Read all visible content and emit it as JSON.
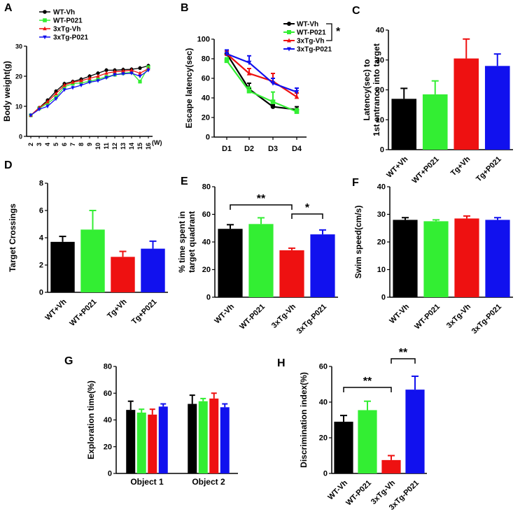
{
  "panels": {
    "A": "A",
    "B": "B",
    "C": "C",
    "D": "D",
    "E": "E",
    "F": "F",
    "G": "G",
    "H": "H"
  },
  "colors": {
    "WT-Vh": "#000000",
    "WT-P021": "#33ee33",
    "3xTg-Vh": "#ee1111",
    "3xTg-P021": "#1111ee"
  },
  "chart_data": [
    {
      "id": "A",
      "type": "line",
      "title": "",
      "xlabel": "",
      "ylabel": "Body weight(g)",
      "x_ticks": [
        "2",
        "3",
        "4",
        "5",
        "6",
        "7",
        "8",
        "9",
        "10",
        "11",
        "12",
        "13",
        "14",
        "15",
        "16"
      ],
      "x_unit": "(W)",
      "ylim": [
        0,
        30
      ],
      "y_ticks": [
        "0",
        "10",
        "20",
        "30"
      ],
      "series": [
        {
          "name": "WT-Vh",
          "values": [
            7,
            9.5,
            12,
            15,
            17.5,
            18.2,
            19,
            20,
            21,
            22,
            22,
            22.2,
            22.3,
            22.7,
            23.5
          ]
        },
        {
          "name": "WT-P021",
          "values": [
            7,
            9.3,
            11,
            13,
            16.5,
            17.5,
            17.8,
            18.3,
            19,
            19.8,
            20.5,
            21,
            21.3,
            18.2,
            23
          ]
        },
        {
          "name": "3xTg-Vh",
          "values": [
            7,
            9.5,
            11.5,
            14.2,
            17,
            18,
            18.5,
            19.3,
            20,
            21,
            21.5,
            21.7,
            22,
            21,
            22.5
          ]
        },
        {
          "name": "3xTg-P021",
          "values": [
            7,
            9,
            10,
            12.5,
            15.5,
            16.2,
            17,
            18,
            18.5,
            19.5,
            20.5,
            20.8,
            21,
            20,
            22
          ]
        }
      ]
    },
    {
      "id": "B",
      "type": "line",
      "title": "",
      "xlabel": "",
      "ylabel": "Escape latency(sec)",
      "categories": [
        "D1",
        "D2",
        "D3",
        "D4"
      ],
      "ylim": [
        0,
        100
      ],
      "y_ticks": [
        "0",
        "20",
        "40",
        "60",
        "80",
        "100"
      ],
      "legend": "top-right",
      "significance": "*",
      "series": [
        {
          "name": "WT-Vh",
          "values": [
            85,
            49,
            31,
            28
          ]
        },
        {
          "name": "WT-P021",
          "values": [
            78,
            47,
            36,
            26
          ]
        },
        {
          "name": "3xTg-Vh",
          "values": [
            85,
            65,
            57,
            41
          ]
        },
        {
          "name": "3xTg-P021",
          "values": [
            85,
            76,
            55,
            46
          ]
        }
      ]
    },
    {
      "id": "C",
      "type": "bar",
      "ylabel_line1": "Latency(sec) to",
      "ylabel_line2": "1st entrance into target",
      "categories": [
        "WT+Vh",
        "WT+P021",
        "Tg+Vh",
        "Tg+P021"
      ],
      "ylim": [
        0,
        40
      ],
      "y_ticks": [
        "0",
        "10",
        "20",
        "30",
        "40"
      ],
      "values": [
        17,
        18.5,
        30.5,
        28
      ],
      "errors": [
        3.5,
        4.5,
        6.5,
        4
      ]
    },
    {
      "id": "D",
      "type": "bar",
      "ylabel": "Target Crossings",
      "categories": [
        "WT+Vh",
        "WT+P021",
        "Tg+Vh",
        "Tg+P021"
      ],
      "ylim": [
        0,
        8
      ],
      "y_ticks": [
        "0",
        "2",
        "4",
        "6",
        "8"
      ],
      "values": [
        3.7,
        4.6,
        2.6,
        3.2
      ],
      "errors": [
        0.4,
        1.4,
        0.4,
        0.55
      ]
    },
    {
      "id": "E",
      "type": "bar",
      "ylabel_line1": "% time spent in",
      "ylabel_line2": "target quadrant",
      "categories": [
        "WT-Vh",
        "WT-P021",
        "3xTg-Vh",
        "3xTg-P021"
      ],
      "ylim": [
        0,
        80
      ],
      "y_ticks": [
        "0",
        "20",
        "40",
        "60",
        "80"
      ],
      "values": [
        49.5,
        53,
        34,
        45.5
      ],
      "errors": [
        3,
        4.5,
        1.5,
        3.2
      ],
      "annotations": [
        {
          "from": 0,
          "to": 2,
          "text": "**"
        },
        {
          "from": 2,
          "to": 3,
          "text": "*"
        }
      ]
    },
    {
      "id": "F",
      "type": "bar",
      "ylabel": "Swim speed(cm/s)",
      "categories": [
        "WT-Vh",
        "WT-P021",
        "3xTg-Vh",
        "3xTg-P021"
      ],
      "ylim": [
        0,
        40
      ],
      "y_ticks": [
        "0",
        "10",
        "20",
        "30",
        "40"
      ],
      "values": [
        28,
        27.5,
        28.5,
        28
      ],
      "errors": [
        0.8,
        0.5,
        0.9,
        0.8
      ]
    },
    {
      "id": "G",
      "type": "bar",
      "ylabel": "Exploration time(%)",
      "categories": [
        "Object 1",
        "Object 2"
      ],
      "ylim": [
        0,
        80
      ],
      "y_ticks": [
        "0",
        "20",
        "40",
        "60",
        "80"
      ],
      "series": [
        {
          "name": "WT-Vh",
          "values": [
            47.5,
            52
          ],
          "errors": [
            6.5,
            6.5
          ]
        },
        {
          "name": "WT-P021",
          "values": [
            45.5,
            54
          ],
          "errors": [
            2.5,
            2
          ]
        },
        {
          "name": "3xTg-Vh",
          "values": [
            44,
            56
          ],
          "errors": [
            4,
            4
          ]
        },
        {
          "name": "3xTg-P021",
          "values": [
            50,
            49.5
          ],
          "errors": [
            2,
            2.5
          ]
        }
      ]
    },
    {
      "id": "H",
      "type": "bar",
      "ylabel": "Discrimination index(%)",
      "categories": [
        "WT-Vh",
        "WT-P021",
        "3xTg-Vh",
        "3xTg-P021"
      ],
      "ylim": [
        0,
        60
      ],
      "y_ticks": [
        "0",
        "20",
        "40",
        "60"
      ],
      "values": [
        29,
        35.5,
        7.5,
        47
      ],
      "errors": [
        3.5,
        5,
        2.5,
        7.5
      ],
      "annotations": [
        {
          "from": 0,
          "to": 2,
          "text": "**"
        },
        {
          "from": 2,
          "to": 3,
          "text": "**"
        }
      ]
    }
  ]
}
